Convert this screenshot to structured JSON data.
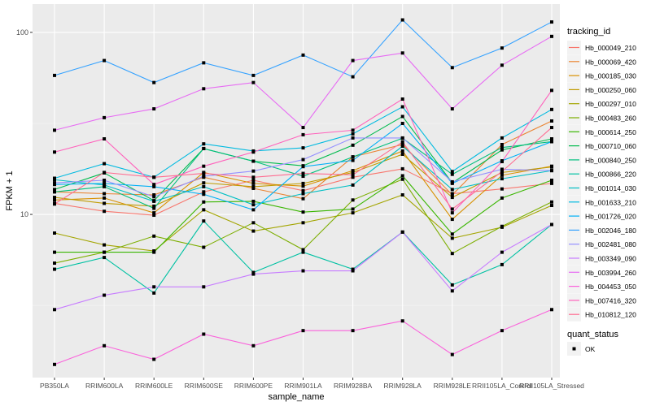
{
  "chart_data": {
    "type": "line",
    "title": "",
    "xlabel": "sample_name",
    "ylabel": "FPKM + 1",
    "y_scale": "log10",
    "ylim": [
      1.27,
      143
    ],
    "y_ticks": [
      10,
      100
    ],
    "y_tick_labels": [
      "10",
      "100"
    ],
    "grid": true,
    "legend_position": "right",
    "categories": [
      "PB350LA",
      "RRIM600LA",
      "RRIM600LE",
      "RRIM600SE",
      "RRIM600PE",
      "RRIM901LA",
      "RRIM928BA",
      "RRIM928LA",
      "RRIM928LE",
      "RRII105LA_Control",
      "RRII105LA_Stressed"
    ],
    "legend_title": "tracking_id",
    "shape_legend_title": "quant_status",
    "shape_legend_items": [
      "OK"
    ],
    "series": [
      {
        "name": "Hb_000049_210",
        "color": "#F8766D",
        "values": [
          11.5,
          10.4,
          9.9,
          13.3,
          15.4,
          13.5,
          16,
          17.8,
          13,
          13.8,
          14.8
        ]
      },
      {
        "name": "Hb_000069_420",
        "color": "#EA8331",
        "values": [
          13.3,
          13,
          12.8,
          16,
          13.9,
          12.2,
          20.7,
          24.2,
          12.8,
          24.2,
          32.6
        ]
      },
      {
        "name": "Hb_000185_030",
        "color": "#D89000",
        "values": [
          12,
          12.3,
          10.2,
          17,
          14.8,
          14.3,
          17.4,
          22.3,
          9.4,
          16.4,
          18.4
        ]
      },
      {
        "name": "Hb_000250_060",
        "color": "#C09B00",
        "values": [
          12.4,
          11.5,
          11.1,
          14.9,
          14.2,
          14.8,
          17,
          21.4,
          12.4,
          17,
          18.2
        ]
      },
      {
        "name": "Hb_000297_010",
        "color": "#A3A500",
        "values": [
          7.9,
          6.8,
          6.3,
          10.6,
          8.1,
          9,
          10.2,
          12.8,
          7.4,
          8.5,
          11.2
        ]
      },
      {
        "name": "Hb_000483_260",
        "color": "#7CAE00",
        "values": [
          5.4,
          6.2,
          7.6,
          6.6,
          9.0,
          6.4,
          12,
          15.6,
          6.1,
          8.6,
          11.7
        ]
      },
      {
        "name": "Hb_000614_250",
        "color": "#39B600",
        "values": [
          6.2,
          6.2,
          6.2,
          11.7,
          11.8,
          10.3,
          10.7,
          16.3,
          7.8,
          12.3,
          15.4
        ]
      },
      {
        "name": "Hb_000710_060",
        "color": "#00BB4E",
        "values": [
          13.7,
          16.9,
          11.9,
          23,
          19.6,
          18.5,
          24,
          34.5,
          14.9,
          22.6,
          26
        ]
      },
      {
        "name": "Hb_000840_250",
        "color": "#00BF7D",
        "values": [
          13.3,
          14.2,
          10.8,
          23,
          19.6,
          16.2,
          20.7,
          26.2,
          16.6,
          23.3,
          25.1
        ]
      },
      {
        "name": "Hb_000866_220",
        "color": "#00C1A3",
        "values": [
          5,
          5.8,
          3.7,
          9.2,
          4.8,
          6.2,
          5,
          8,
          4.1,
          5.3,
          8.8
        ]
      },
      {
        "name": "Hb_001014_030",
        "color": "#00BFC4",
        "values": [
          15.5,
          14.5,
          11.8,
          14.2,
          11.3,
          13,
          14.5,
          23.7,
          13.7,
          15.7,
          17.4
        ]
      },
      {
        "name": "Hb_001633_210",
        "color": "#00BAE0",
        "values": [
          15.8,
          19,
          16,
          24.4,
          22.3,
          23.2,
          27.7,
          39,
          17.2,
          26.3,
          37.7
        ]
      },
      {
        "name": "Hb_001726_020",
        "color": "#00B0F6",
        "values": [
          14.6,
          14.8,
          14.2,
          12.9,
          10.6,
          18.3,
          19.8,
          31.6,
          14.8,
          19.7,
          25.1
        ]
      },
      {
        "name": "Hb_002046_180",
        "color": "#35A2FF",
        "values": [
          58,
          70,
          53,
          68,
          58,
          75,
          57,
          117,
          64,
          82,
          114
        ]
      },
      {
        "name": "Hb_002481_080",
        "color": "#9590FF",
        "values": [
          14.9,
          15.4,
          12.5,
          16.2,
          17.3,
          20,
          26.3,
          26.3,
          15.1,
          17.7,
          17.4
        ]
      },
      {
        "name": "Hb_003349_090",
        "color": "#C77CFF",
        "values": [
          3.0,
          3.6,
          4.0,
          4.0,
          4.7,
          4.9,
          4.9,
          8,
          3.8,
          6.2,
          8.8
        ]
      },
      {
        "name": "Hb_003994_260",
        "color": "#E76BF3",
        "values": [
          29,
          34,
          38,
          49,
          53,
          30,
          70,
          77,
          38,
          66,
          95
        ]
      },
      {
        "name": "Hb_004453_050",
        "color": "#FA62DB",
        "values": [
          1.5,
          1.9,
          1.6,
          2.2,
          1.9,
          2.3,
          2.3,
          2.6,
          1.7,
          2.3,
          3.0
        ]
      },
      {
        "name": "Hb_007416_320",
        "color": "#FF62BC",
        "values": [
          22,
          26,
          14.6,
          18.4,
          22,
          27.4,
          29,
          43,
          10.2,
          19.5,
          48
        ]
      },
      {
        "name": "Hb_010812_120",
        "color": "#FF6C91",
        "values": [
          11.4,
          17,
          16,
          16.8,
          16,
          16.8,
          16.5,
          25,
          10.7,
          17.2,
          30
        ]
      }
    ]
  }
}
